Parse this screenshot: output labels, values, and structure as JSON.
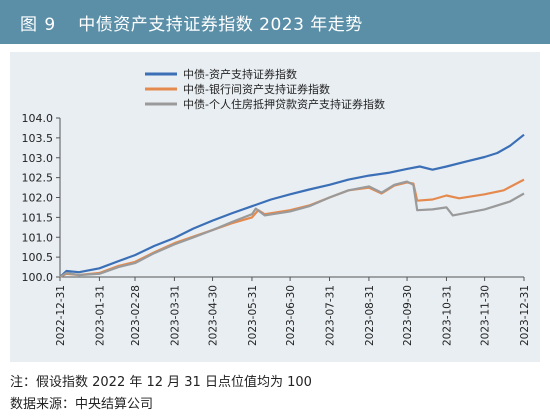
{
  "header": {
    "figure_number": "图 9",
    "title": "中债资产支持证券指数 2023 年走势"
  },
  "footer": {
    "note": "注：假设指数 2022 年 12 月 31 日点位值均为 100",
    "source": "数据来源：中央结算公司"
  },
  "colors": {
    "header_bg": "#5b8fa8",
    "panel_bg": "#e9eef3",
    "series_1": "#3b6fb6",
    "series_2": "#e58a4e",
    "series_3": "#9a9a9a"
  },
  "chart_data": {
    "type": "line",
    "title": "",
    "xlabel": "",
    "ylabel": "",
    "ylim": [
      100.0,
      104.0
    ],
    "yticks": [
      "100.0",
      "100.5",
      "101.0",
      "101.5",
      "102.0",
      "102.5",
      "103.0",
      "103.5",
      "104.0"
    ],
    "xticks": [
      "2022-12-31",
      "2023-01-31",
      "2023-02-28",
      "2023-03-31",
      "2023-04-30",
      "2023-05-31",
      "2023-06-30",
      "2023-07-31",
      "2023-08-31",
      "2023-09-30",
      "2023-10-31",
      "2023-11-30",
      "2023-12-31"
    ],
    "grid": false,
    "legend_position": "top-center",
    "series": [
      {
        "name": "中债-资产支持证券指数",
        "color": "#3b6fb6",
        "points": [
          [
            "2022-12-31",
            100.0
          ],
          [
            "2023-01-05",
            100.15
          ],
          [
            "2023-01-15",
            100.12
          ],
          [
            "2023-01-31",
            100.22
          ],
          [
            "2023-02-15",
            100.4
          ],
          [
            "2023-02-28",
            100.55
          ],
          [
            "2023-03-15",
            100.78
          ],
          [
            "2023-03-31",
            100.98
          ],
          [
            "2023-04-15",
            101.22
          ],
          [
            "2023-04-30",
            101.42
          ],
          [
            "2023-05-15",
            101.6
          ],
          [
            "2023-05-31",
            101.78
          ],
          [
            "2023-06-15",
            101.95
          ],
          [
            "2023-06-30",
            102.08
          ],
          [
            "2023-07-15",
            102.2
          ],
          [
            "2023-07-31",
            102.32
          ],
          [
            "2023-08-15",
            102.45
          ],
          [
            "2023-08-31",
            102.55
          ],
          [
            "2023-09-15",
            102.62
          ],
          [
            "2023-09-30",
            102.72
          ],
          [
            "2023-10-10",
            102.78
          ],
          [
            "2023-10-20",
            102.7
          ],
          [
            "2023-10-31",
            102.78
          ],
          [
            "2023-11-15",
            102.9
          ],
          [
            "2023-11-30",
            103.02
          ],
          [
            "2023-12-10",
            103.12
          ],
          [
            "2023-12-20",
            103.3
          ],
          [
            "2023-12-31",
            103.58
          ]
        ]
      },
      {
        "name": "中债-银行间资产支持证券指数",
        "color": "#e58a4e",
        "points": [
          [
            "2022-12-31",
            100.0
          ],
          [
            "2023-01-05",
            100.08
          ],
          [
            "2023-01-15",
            100.05
          ],
          [
            "2023-01-31",
            100.1
          ],
          [
            "2023-02-15",
            100.28
          ],
          [
            "2023-02-28",
            100.38
          ],
          [
            "2023-03-15",
            100.62
          ],
          [
            "2023-03-31",
            100.85
          ],
          [
            "2023-04-15",
            101.02
          ],
          [
            "2023-04-30",
            101.18
          ],
          [
            "2023-05-15",
            101.35
          ],
          [
            "2023-05-31",
            101.5
          ],
          [
            "2023-06-05",
            101.68
          ],
          [
            "2023-06-10",
            101.58
          ],
          [
            "2023-06-30",
            101.68
          ],
          [
            "2023-07-15",
            101.8
          ],
          [
            "2023-07-31",
            102.0
          ],
          [
            "2023-08-15",
            102.18
          ],
          [
            "2023-08-31",
            102.25
          ],
          [
            "2023-09-10",
            102.1
          ],
          [
            "2023-09-20",
            102.3
          ],
          [
            "2023-09-30",
            102.38
          ],
          [
            "2023-10-05",
            102.35
          ],
          [
            "2023-10-08",
            101.92
          ],
          [
            "2023-10-20",
            101.95
          ],
          [
            "2023-10-31",
            102.05
          ],
          [
            "2023-11-10",
            101.98
          ],
          [
            "2023-11-30",
            102.08
          ],
          [
            "2023-12-15",
            102.18
          ],
          [
            "2023-12-31",
            102.45
          ]
        ]
      },
      {
        "name": "中债-个人住房抵押贷款资产支持证券指数",
        "color": "#9a9a9a",
        "points": [
          [
            "2022-12-31",
            100.0
          ],
          [
            "2023-01-05",
            100.1
          ],
          [
            "2023-01-15",
            100.05
          ],
          [
            "2023-01-31",
            100.08
          ],
          [
            "2023-02-15",
            100.25
          ],
          [
            "2023-02-28",
            100.35
          ],
          [
            "2023-03-15",
            100.6
          ],
          [
            "2023-03-31",
            100.82
          ],
          [
            "2023-04-15",
            101.0
          ],
          [
            "2023-04-30",
            101.18
          ],
          [
            "2023-05-15",
            101.38
          ],
          [
            "2023-05-31",
            101.58
          ],
          [
            "2023-06-03",
            101.72
          ],
          [
            "2023-06-10",
            101.55
          ],
          [
            "2023-06-30",
            101.65
          ],
          [
            "2023-07-15",
            101.78
          ],
          [
            "2023-07-31",
            102.0
          ],
          [
            "2023-08-15",
            102.18
          ],
          [
            "2023-08-31",
            102.28
          ],
          [
            "2023-09-10",
            102.12
          ],
          [
            "2023-09-20",
            102.32
          ],
          [
            "2023-09-30",
            102.4
          ],
          [
            "2023-10-05",
            102.32
          ],
          [
            "2023-10-08",
            101.68
          ],
          [
            "2023-10-20",
            101.7
          ],
          [
            "2023-10-31",
            101.75
          ],
          [
            "2023-11-05",
            101.55
          ],
          [
            "2023-11-30",
            101.7
          ],
          [
            "2023-12-20",
            101.9
          ],
          [
            "2023-12-31",
            102.1
          ]
        ]
      }
    ]
  }
}
